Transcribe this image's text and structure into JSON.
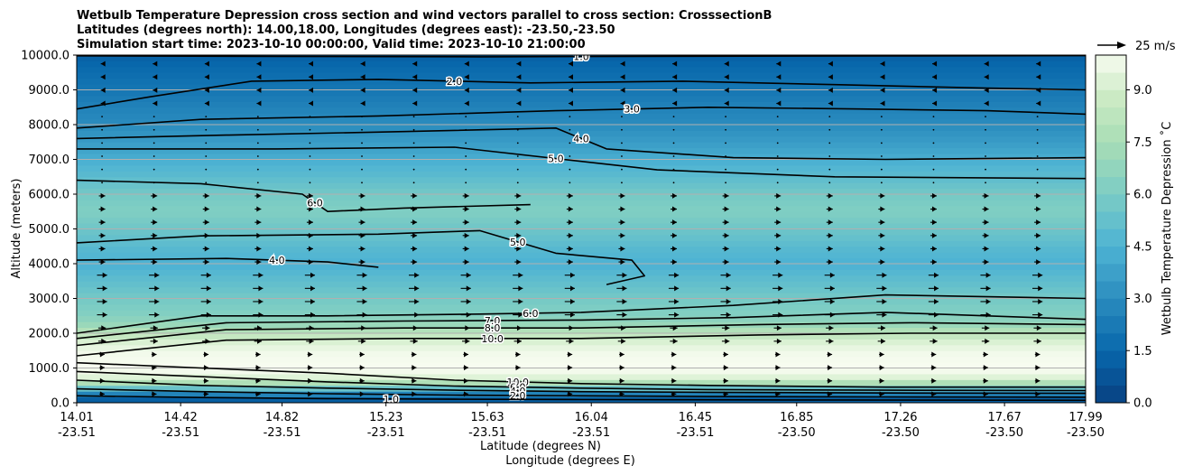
{
  "chart_data": {
    "type": "contour",
    "title_lines": [
      "Wetbulb Temperature Depression cross section and wind vectors parallel to cross section: CrosssectionB",
      "Latitudes (degrees north): 14.00,18.00, Longitudes (degrees east): -23.50,-23.50",
      "Simulation start time: 2023-10-10 00:00:00, Valid time: 2023-10-10 21:00:00"
    ],
    "xlabel_lines": [
      "Latitude (degrees N)",
      "Longitude (degrees E)"
    ],
    "ylabel": "Altitude (meters)",
    "xlim": [
      14.01,
      17.99
    ],
    "ylim": [
      0,
      10000
    ],
    "x_ticks": [
      {
        "lat": 14.01,
        "label_lat": "14.01",
        "label_lon": "-23.51"
      },
      {
        "lat": 14.42,
        "label_lat": "14.42",
        "label_lon": "-23.51"
      },
      {
        "lat": 14.82,
        "label_lat": "14.82",
        "label_lon": "-23.51"
      },
      {
        "lat": 15.23,
        "label_lat": "15.23",
        "label_lon": "-23.51"
      },
      {
        "lat": 15.63,
        "label_lat": "15.63",
        "label_lon": "-23.51"
      },
      {
        "lat": 16.04,
        "label_lat": "16.04",
        "label_lon": "-23.51"
      },
      {
        "lat": 16.45,
        "label_lat": "16.45",
        "label_lon": "-23.51"
      },
      {
        "lat": 16.85,
        "label_lat": "16.85",
        "label_lon": "-23.50"
      },
      {
        "lat": 17.26,
        "label_lat": "17.26",
        "label_lon": "-23.50"
      },
      {
        "lat": 17.67,
        "label_lat": "17.67",
        "label_lon": "-23.50"
      },
      {
        "lat": 17.99,
        "label_lat": "17.99",
        "label_lon": "-23.50"
      }
    ],
    "y_ticks": [
      {
        "value": 0,
        "label": "0.0"
      },
      {
        "value": 1000,
        "label": "1000.0"
      },
      {
        "value": 2000,
        "label": "2000.0"
      },
      {
        "value": 3000,
        "label": "3000.0"
      },
      {
        "value": 4000,
        "label": "4000.0"
      },
      {
        "value": 5000,
        "label": "5000.0"
      },
      {
        "value": 6000,
        "label": "6000.0"
      },
      {
        "value": 7000,
        "label": "7000.0"
      },
      {
        "value": 8000,
        "label": "8000.0"
      },
      {
        "value": 9000,
        "label": "9000.0"
      },
      {
        "value": 10000,
        "label": "10000.0"
      }
    ],
    "grid": "horizontal",
    "colormap": "GnBu_r",
    "colorbar": {
      "label": "Wetbulb Temperature Depression ˚C",
      "range": [
        0,
        10
      ],
      "ticks": [
        {
          "value": 0.0,
          "label": "0.0"
        },
        {
          "value": 1.5,
          "label": "1.5"
        },
        {
          "value": 3.0,
          "label": "3.0"
        },
        {
          "value": 4.5,
          "label": "4.5"
        },
        {
          "value": 6.0,
          "label": "6.0"
        },
        {
          "value": 7.5,
          "label": "7.5"
        },
        {
          "value": 9.0,
          "label": "9.0"
        }
      ]
    },
    "vector_key": {
      "label": "25 m/s",
      "speed": 25
    },
    "profile": {
      "altitudes": [
        0,
        150,
        300,
        500,
        800,
        1100,
        1400,
        1700,
        2000,
        2300,
        2600,
        3000,
        3500,
        4000,
        4500,
        5000,
        5500,
        6000,
        6500,
        7000,
        7500,
        8000,
        8500,
        9000,
        9500,
        10000
      ],
      "depression": [
        0.6,
        1.6,
        3.2,
        7.0,
        9.8,
        10.0,
        9.9,
        9.4,
        8.2,
        6.8,
        6.2,
        5.8,
        5.1,
        4.4,
        4.9,
        5.6,
        6.2,
        5.8,
        5.0,
        4.3,
        3.6,
        3.0,
        2.6,
        2.1,
        1.7,
        1.2
      ]
    },
    "contour_lines": [
      {
        "label": "1.0",
        "pts": [
          [
            14.01,
            9980
          ],
          [
            14.8,
            9960
          ],
          [
            15.6,
            9950
          ],
          [
            16.4,
            9965
          ],
          [
            17.2,
            9975
          ],
          [
            17.99,
            9985
          ]
        ]
      },
      {
        "label": "2.0",
        "pts": [
          [
            14.01,
            8450
          ],
          [
            14.3,
            8800
          ],
          [
            14.7,
            9250
          ],
          [
            15.2,
            9300
          ],
          [
            15.8,
            9200
          ],
          [
            16.4,
            9250
          ],
          [
            17.0,
            9150
          ],
          [
            17.6,
            9050
          ],
          [
            17.99,
            9000
          ]
        ]
      },
      {
        "label": "3.0",
        "pts": [
          [
            14.01,
            7900
          ],
          [
            14.5,
            8150
          ],
          [
            15.2,
            8250
          ],
          [
            15.9,
            8400
          ],
          [
            16.5,
            8500
          ],
          [
            17.1,
            8450
          ],
          [
            17.6,
            8400
          ],
          [
            17.99,
            8300
          ]
        ]
      },
      {
        "label": "4.0",
        "pts": [
          [
            14.01,
            7600
          ],
          [
            14.6,
            7700
          ],
          [
            15.3,
            7800
          ],
          [
            15.9,
            7900
          ],
          [
            16.1,
            7300
          ],
          [
            16.6,
            7050
          ],
          [
            17.2,
            7000
          ],
          [
            17.99,
            7050
          ]
        ]
      },
      {
        "label": "5.0",
        "pts": [
          [
            14.01,
            7300
          ],
          [
            14.8,
            7300
          ],
          [
            15.5,
            7350
          ],
          [
            16.3,
            6700
          ],
          [
            17.0,
            6500
          ],
          [
            17.99,
            6450
          ]
        ]
      },
      {
        "label": "6.0",
        "pts": [
          [
            14.01,
            6400
          ],
          [
            14.5,
            6300
          ],
          [
            14.9,
            6000
          ],
          [
            15.0,
            5500
          ],
          [
            15.3,
            5600
          ],
          [
            15.8,
            5700
          ]
        ]
      },
      {
        "label": "5.0",
        "pts": [
          [
            14.01,
            4600
          ],
          [
            14.5,
            4800
          ],
          [
            15.2,
            4850
          ],
          [
            15.6,
            4950
          ],
          [
            15.9,
            4300
          ],
          [
            16.2,
            4100
          ],
          [
            16.25,
            3650
          ],
          [
            16.1,
            3400
          ]
        ]
      },
      {
        "label": "4.0",
        "pts": [
          [
            14.01,
            4100
          ],
          [
            14.6,
            4150
          ],
          [
            15.0,
            4050
          ],
          [
            15.2,
            3900
          ]
        ]
      },
      {
        "label": "6.0",
        "pts": [
          [
            14.01,
            2000
          ],
          [
            14.5,
            2500
          ],
          [
            15.0,
            2500
          ],
          [
            15.6,
            2550
          ],
          [
            16.0,
            2600
          ],
          [
            16.6,
            2800
          ],
          [
            17.2,
            3100
          ],
          [
            17.99,
            3000
          ]
        ]
      },
      {
        "label": "7.0",
        "pts": [
          [
            14.01,
            1850
          ],
          [
            14.6,
            2300
          ],
          [
            15.3,
            2350
          ],
          [
            16.0,
            2380
          ],
          [
            16.6,
            2450
          ],
          [
            17.2,
            2600
          ],
          [
            17.99,
            2400
          ]
        ]
      },
      {
        "label": "8.0",
        "pts": [
          [
            14.01,
            1650
          ],
          [
            14.6,
            2100
          ],
          [
            15.3,
            2150
          ],
          [
            16.0,
            2150
          ],
          [
            16.7,
            2250
          ],
          [
            17.3,
            2300
          ],
          [
            17.99,
            2250
          ]
        ]
      },
      {
        "label": "10.0",
        "pts": [
          [
            14.01,
            1350
          ],
          [
            14.6,
            1800
          ],
          [
            15.3,
            1850
          ],
          [
            16.0,
            1850
          ],
          [
            16.7,
            1950
          ],
          [
            17.3,
            2000
          ],
          [
            17.99,
            2000
          ]
        ]
      },
      {
        "label": "10.0",
        "pts": [
          [
            14.01,
            1150
          ],
          [
            14.5,
            1000
          ],
          [
            15.0,
            850
          ],
          [
            15.5,
            650
          ],
          [
            16.0,
            550
          ],
          [
            16.5,
            500
          ],
          [
            17.2,
            450
          ],
          [
            17.99,
            450
          ]
        ]
      },
      {
        "label": "6.0",
        "pts": [
          [
            14.01,
            900
          ],
          [
            14.5,
            750
          ],
          [
            15.0,
            600
          ],
          [
            15.5,
            480
          ],
          [
            16.0,
            420
          ],
          [
            16.5,
            380
          ],
          [
            17.2,
            360
          ],
          [
            17.99,
            350
          ]
        ]
      },
      {
        "label": "4.0",
        "pts": [
          [
            14.01,
            650
          ],
          [
            14.5,
            500
          ],
          [
            15.0,
            420
          ],
          [
            15.5,
            360
          ],
          [
            16.0,
            320
          ],
          [
            16.5,
            300
          ],
          [
            17.2,
            280
          ],
          [
            17.99,
            270
          ]
        ]
      },
      {
        "label": "2.0",
        "pts": [
          [
            14.01,
            400
          ],
          [
            14.5,
            320
          ],
          [
            15.0,
            260
          ],
          [
            15.5,
            220
          ],
          [
            16.0,
            200
          ],
          [
            16.5,
            180
          ],
          [
            17.2,
            170
          ],
          [
            17.99,
            160
          ]
        ]
      },
      {
        "label": "1.0",
        "pts": [
          [
            14.01,
            200
          ],
          [
            14.5,
            150
          ],
          [
            15.0,
            120
          ],
          [
            15.5,
            100
          ],
          [
            16.0,
            90
          ],
          [
            16.8,
            80
          ],
          [
            17.99,
            70
          ]
        ]
      }
    ],
    "wind_vectors": [
      {
        "alt_min": 0,
        "alt_max": 1500,
        "u": 4
      },
      {
        "alt_min": 1500,
        "alt_max": 2500,
        "u": 6
      },
      {
        "alt_min": 2500,
        "alt_max": 4000,
        "u": 8
      },
      {
        "alt_min": 4000,
        "alt_max": 6000,
        "u": 5
      },
      {
        "alt_min": 6000,
        "alt_max": 8500,
        "u": 1
      },
      {
        "alt_min": 8500,
        "alt_max": 10000,
        "u": -2
      }
    ]
  }
}
